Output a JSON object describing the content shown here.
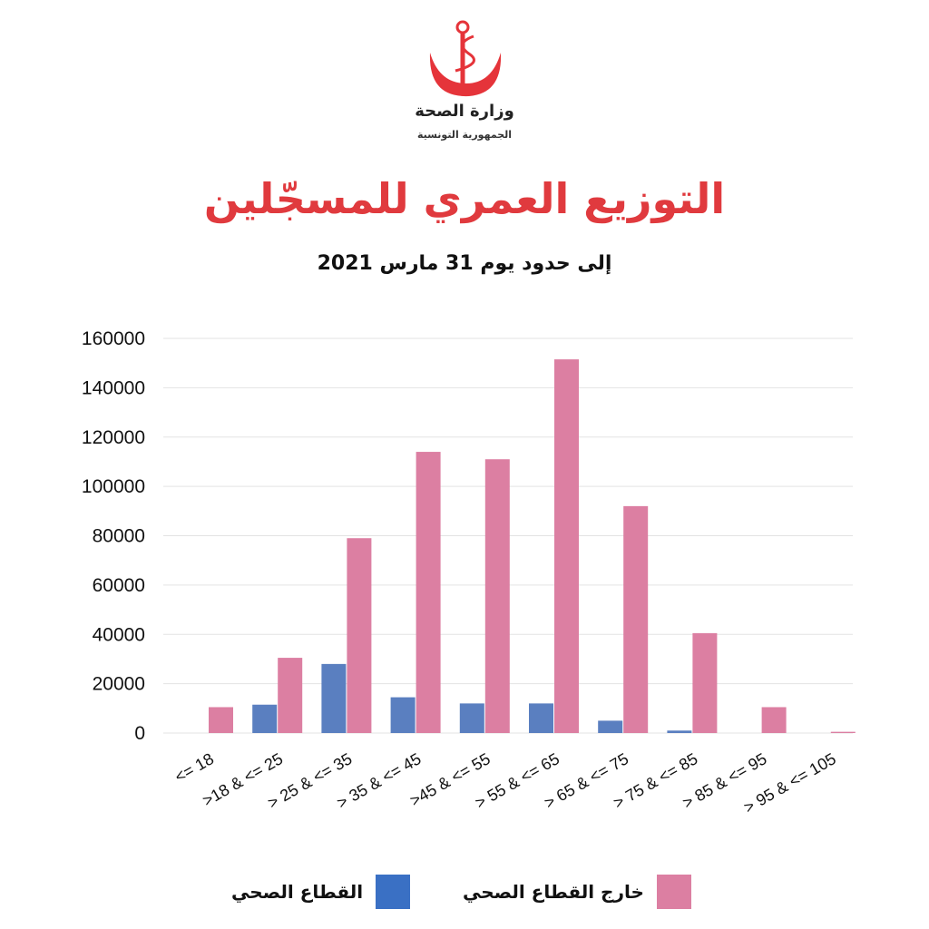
{
  "header": {
    "ministry": "وزارة الصحة",
    "republic": "الجمهورية التونسية",
    "title": "التوزيع العمري للمسجّلين",
    "subtitle": "إلى حدود يوم 31 مارس 2021"
  },
  "colors": {
    "outside": "#dc7fa2",
    "inside": "#5a7fc0",
    "legend_inside": "#3a70c4",
    "title": "#e03a3e",
    "logo": "#e5343a"
  },
  "chart_data": {
    "type": "bar",
    "title": "",
    "xlabel": "",
    "ylabel": "",
    "ylim": [
      0,
      160000
    ],
    "yticks": [
      0,
      20000,
      40000,
      60000,
      80000,
      100000,
      120000,
      140000,
      160000
    ],
    "categories": [
      "<= 18",
      ">18 & <= 25",
      "> 25 & <= 35",
      "> 35 & <= 45",
      ">45 & <= 55",
      "> 55 & <= 65",
      "> 65 & <= 75",
      "> 75 & <= 85",
      "> 85 & <= 95",
      "> 95 & <= 105"
    ],
    "grid": true,
    "legend_position": "bottom",
    "series": [
      {
        "name": "القطاع الصحي",
        "color": "#5a7fc0",
        "values": [
          0,
          11500,
          28000,
          14500,
          12000,
          12000,
          5000,
          1000,
          0,
          0
        ]
      },
      {
        "name": "خارج القطاع الصحي",
        "color": "#dc7fa2",
        "values": [
          10500,
          30500,
          79000,
          114000,
          111000,
          151500,
          92000,
          40500,
          10500,
          500
        ]
      }
    ]
  }
}
